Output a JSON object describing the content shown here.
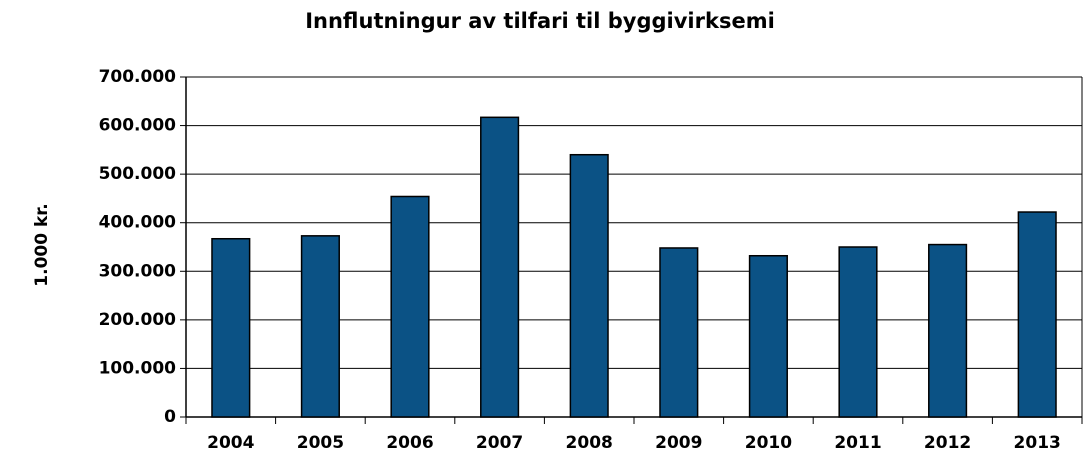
{
  "chart_data": {
    "type": "bar",
    "title": "Innflutningur av tilfari til byggivirksemi",
    "y_label": "1.000 kr.",
    "categories": [
      "2004",
      "2005",
      "2006",
      "2007",
      "2008",
      "2009",
      "2010",
      "2011",
      "2012",
      "2013"
    ],
    "values": [
      367000,
      373000,
      454000,
      617000,
      540000,
      348000,
      332000,
      350000,
      355000,
      422000
    ],
    "color": "#0b5285",
    "ylim": [
      0,
      700000
    ],
    "yticks": [
      0,
      {
        "value": 100000,
        "label": "100.000"
      },
      {
        "value": 200000,
        "label": "200.000"
      },
      {
        "value": 300000,
        "label": "300.000"
      },
      {
        "value": 400000,
        "label": "400.000"
      },
      {
        "value": 500000,
        "label": "500.000"
      },
      {
        "value": 600000,
        "label": "600.000"
      },
      {
        "value": 700000,
        "label": "700.000"
      }
    ],
    "grid": true
  }
}
